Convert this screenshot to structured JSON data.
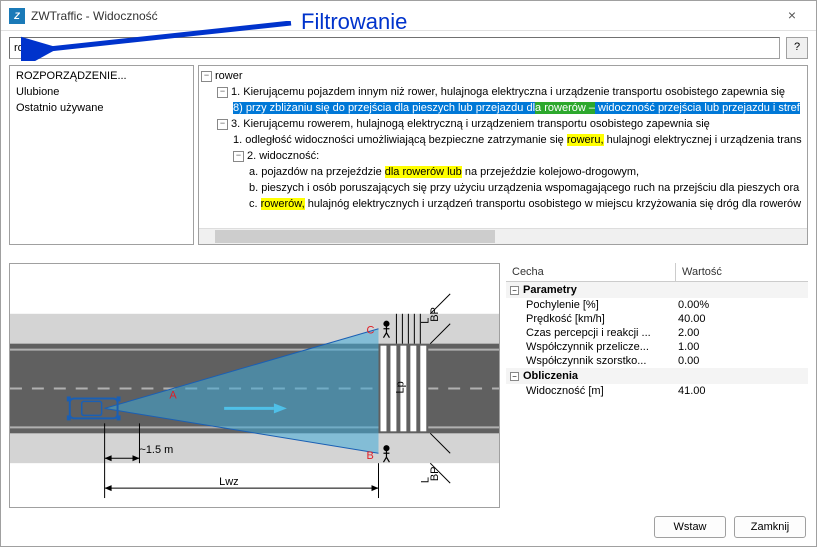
{
  "window": {
    "title": "ZWTraffic - Widoczność",
    "close": "×"
  },
  "annotation": "Filtrowanie",
  "search": {
    "value": "rower",
    "help": "?"
  },
  "left_list": [
    "ROZPORZĄDZENIE...",
    "Ulubione",
    "Ostatnio używane"
  ],
  "tree": {
    "root": "rower",
    "n1": "1. Kierującemu pojazdem innym niż rower, hulajnoga elektryczna i urządzenie transportu osobistego zapewnia się",
    "n1_8_pre": "8) przy zbliżaniu się do przejścia dla pieszych lub przejazdu dl",
    "n1_8_hl": "a rowerów –",
    "n1_8_post": " widoczność przejścia lub przejazdu i stref",
    "n3": "3. Kierującemu rowerem, hulajnogą elektryczną i urządzeniem transportu osobistego zapewnia się",
    "n3_1_pre": "1. odległość widoczności umożliwiającą bezpieczne zatrzymanie się ",
    "n3_1_hl": "roweru,",
    "n3_1_post": " hulajnogi elektrycznej i urządzenia trans",
    "n3_2": "2. widoczność:",
    "n3_2a_pre": "a. pojazdów na przejeździe ",
    "n3_2a_hl": "dla rowerów lub",
    "n3_2a_post": " na przejeździe kolejowo-drogowym,",
    "n3_2b": "b. pieszych i osób poruszających się przy użyciu urządzenia wspomagającego ruch na przejściu dla pieszych ora",
    "n3_2c_pre": "c. ",
    "n3_2c_hl": "rowerów,",
    "n3_2c_post": " hulajnóg elektrycznych i urządzeń transportu osobistego w miejscu krzyżowania się dróg dla rowerów"
  },
  "props": {
    "header_key": "Cecha",
    "header_val": "Wartość",
    "group1": "Parametry",
    "rows1": [
      [
        "Pochylenie [%]",
        "0.00%"
      ],
      [
        "Prędkość [km/h]",
        "40.00"
      ],
      [
        "Czas percepcji i reakcji ...",
        "2.00"
      ],
      [
        "Współczynnik przelicze...",
        "1.00"
      ],
      [
        "Współczynnik szorstko...",
        "0.00"
      ]
    ],
    "group2": "Obliczenia",
    "rows2": [
      [
        "Widoczność [m]",
        "41.00"
      ]
    ]
  },
  "buttons": {
    "insert": "Wstaw",
    "close": "Zamknij"
  },
  "diagram": {
    "road_color": "#606060",
    "lane_line": "#b0b0b0",
    "shoulder": "#d4d4d4",
    "bg": "#ffffff",
    "car_color": "#1a5fb4",
    "vision_color": "#3fa9d7",
    "vision_opacity": 0.55,
    "A": "A",
    "B": "B",
    "C": "C",
    "Lwz": "Lwz",
    "Lp": "Lp",
    "Lbp1": "BP",
    "Lbp2": "BP",
    "approx": "~1.5 m",
    "red": "#e01b24",
    "black": "#000000"
  }
}
